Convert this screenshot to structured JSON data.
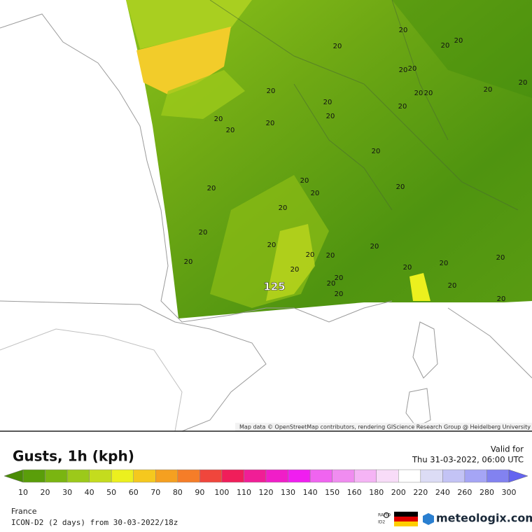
{
  "map": {
    "labels": [
      "20",
      "20",
      "20",
      "20",
      "20",
      "20",
      "20",
      "20",
      "20",
      "20",
      "20",
      "20",
      "20",
      "20",
      "20",
      "20",
      "20",
      "20",
      "20",
      "20",
      "20",
      "20",
      "20",
      "20",
      "20",
      "20",
      "20",
      "20",
      "20",
      "20",
      "20",
      "20",
      "20",
      "20",
      "20",
      "20",
      "20",
      "20"
    ],
    "peak_label": "125",
    "attribution": "Map data © OpenStreetMap contributors, rendering GIScience Research Group @ Heidelberg University"
  },
  "header": {
    "title": "Gusts, 1h (kph)",
    "valid_label": "Valid for",
    "valid_time": "Thu 31-03-2022, 06:00 UTC"
  },
  "legend": {
    "ticks": [
      "10",
      "20",
      "30",
      "40",
      "50",
      "60",
      "70",
      "80",
      "90",
      "100",
      "110",
      "120",
      "130",
      "140",
      "150",
      "160",
      "180",
      "200",
      "220",
      "240",
      "260",
      "280",
      "300"
    ],
    "colors": [
      "#4a8c05",
      "#5a9e0a",
      "#7ab511",
      "#9cc91a",
      "#c4dc1e",
      "#ecf01e",
      "#f5c81e",
      "#f5a020",
      "#f57d28",
      "#f0463c",
      "#f01e5a",
      "#f01e96",
      "#f01ec8",
      "#f01ef0",
      "#f064f0",
      "#f08cf0",
      "#f5b4f5",
      "#f8dcf8",
      "#ffffff",
      "#dcdcf5",
      "#c3c3f5",
      "#a5a5f5",
      "#8282f0",
      "#6464f0"
    ]
  },
  "footer": {
    "region": "France",
    "model": "ICON-D2 (2 days) from 30-03-2022/18z",
    "rapid": "RAPID",
    "id2": "ID2",
    "brand": "meteologix.com"
  }
}
